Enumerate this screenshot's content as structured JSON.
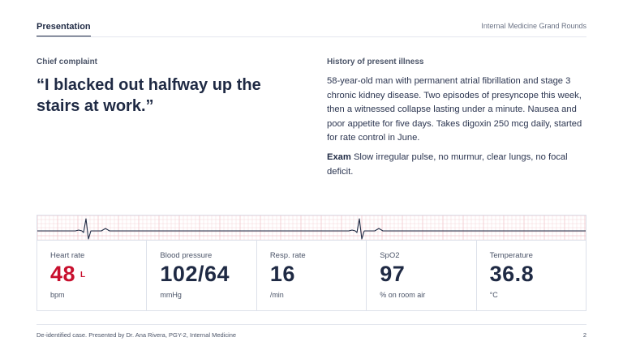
{
  "header": {
    "tab": "Presentation",
    "deck_title": "Internal Medicine Grand Rounds"
  },
  "complaint": {
    "label": "Chief complaint",
    "quote": "“I blacked out halfway up the stairs at work.”"
  },
  "hpi": {
    "label": "History of present illness",
    "text": "58-year-old man with permanent atrial fibrillation and stage 3 chronic kidney disease. Two episodes of presyncope this week, then a witnessed collapse lasting under a minute. Nausea and poor appetite for five days. Takes digoxin 250 mcg daily, started for rate control in June.",
    "exam_label": "Exam",
    "exam_text": "Slow irregular pulse, no murmur, clear lungs, no focal deficit."
  },
  "vitals": [
    {
      "label": "Heart rate",
      "value": "48",
      "flag": "L",
      "unit": "bpm",
      "alert": true
    },
    {
      "label": "Blood pressure",
      "value": "102/64",
      "flag": "",
      "unit": "mmHg",
      "alert": false
    },
    {
      "label": "Resp. rate",
      "value": "16",
      "flag": "",
      "unit": "/min",
      "alert": false
    },
    {
      "label": "SpO2",
      "value": "97",
      "flag": "",
      "unit": "% on room air",
      "alert": false
    },
    {
      "label": "Temperature",
      "value": "36.8",
      "flag": "",
      "unit": "°C",
      "alert": false
    }
  ],
  "footer": {
    "text": "De-identified case. Presented by Dr. Ana Rivera, PGY-2, Internal Medicine",
    "page": "2"
  },
  "colors": {
    "primary": "#1f2a44",
    "alert": "#c8102e",
    "ecg_grid": "#f2c6cc",
    "muted": "#4b5468"
  }
}
